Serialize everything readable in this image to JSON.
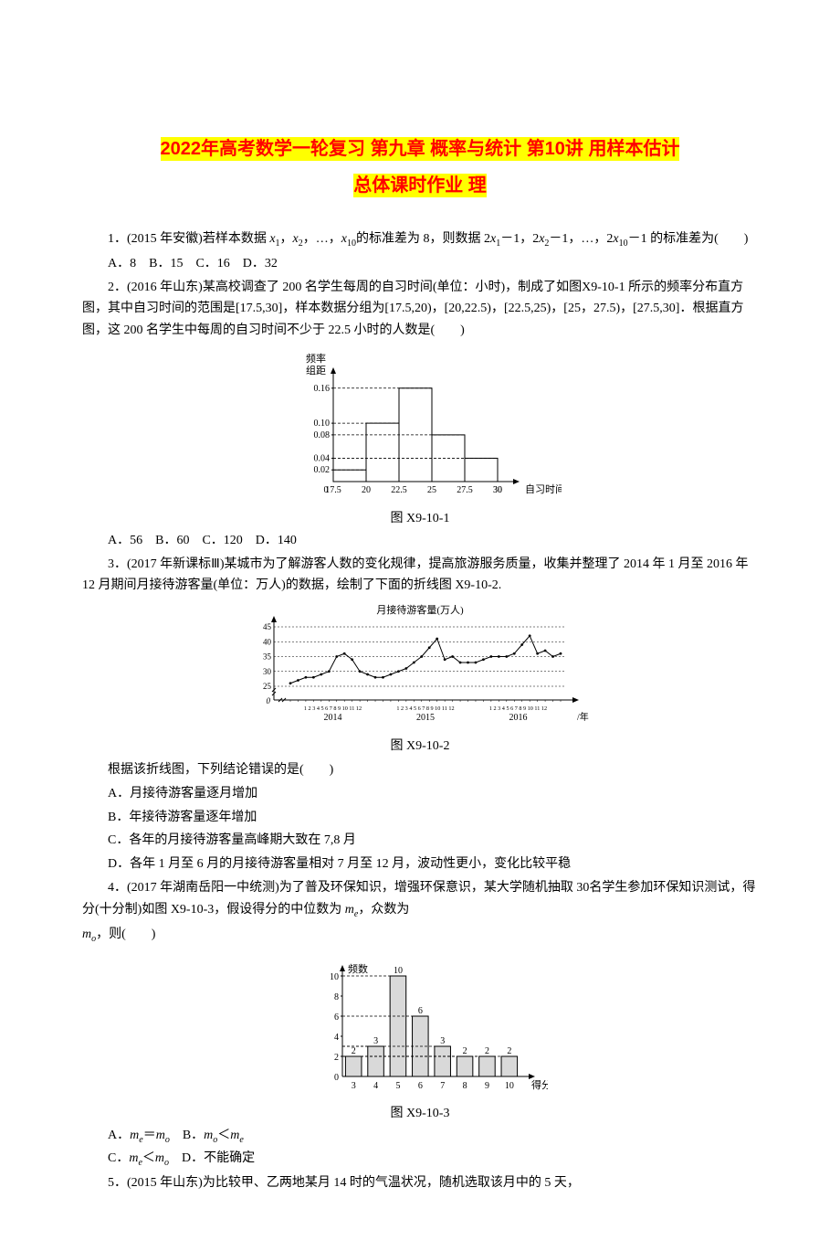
{
  "title": {
    "line1": "2022年高考数学一轮复习 第九章 概率与统计 第10讲 用样本估计",
    "line2": "总体课时作业 理"
  },
  "q1": {
    "stem_a": "1．(2015 年安徽)若样本数据 ",
    "stem_b": "的标准差为 8，则数据 2",
    "stem_c": "－1，2",
    "stem_d": "－1，…，2",
    "stem_e": "－1 的标准差为(　　)",
    "opts": "A．8　B．15　C．16　D．32"
  },
  "q2": {
    "stem_a": "2．(2016 年山东)某高校调查了 200 名学生每周的自习时间(单位：小时)，制成了如图X9-10-1 所示的频率分布直方图，其中自习时间的范围是[17.5,30]，样本数据分组为[17.5,20)，[20,22.5)，[22.5,25)，[25，27.5)，[27.5,30]．根据直方图，这 200 名学生中每周的自习时间不少于 22.5 小时的人数是(　　)",
    "ylabel1": "频率",
    "ylabel2": "组距",
    "yt": [
      "0.02",
      "0.04",
      "0.08",
      "0.10",
      "0.16"
    ],
    "xt": [
      "0",
      "17.5",
      "20",
      "22.5",
      "25",
      "27.5",
      "30"
    ],
    "xlabel": "自习时间/时",
    "figlabel": "图 X9-10-1",
    "opts": "A．56　B．60　C．120　D．140",
    "bars": [
      0.02,
      0.1,
      0.16,
      0.08,
      0.04
    ],
    "ymax": 0.18,
    "colors": {
      "axis": "#000",
      "dash": "#000"
    }
  },
  "q3": {
    "stem_a": "3．(2017 年新课标Ⅲ)某城市为了解游客人数的变化规律，提高旅游服务质量，收集并整理了 2014 年 1 月至 2016 年 12 月期间月接待游客量(单位：万人)的数据，绘制了下面的折线图 X9-10-2.",
    "title": "月接待游客量(万人)",
    "yt": [
      "0",
      "25",
      "30",
      "35",
      "40",
      "45"
    ],
    "years": [
      "2014",
      "2015",
      "2016"
    ],
    "xlabel_end": "/年",
    "months": "1 2 3 4 5 6 7 8 9 10 11 12",
    "figlabel": "图 X9-10-2",
    "follow": "根据该折线图，下列结论错误的是(　　)",
    "A": "A．月接待游客量逐月增加",
    "B": "B．年接待游客量逐年增加",
    "C": "C．各年的月接待游客量高峰期大致在 7,8 月",
    "D": "D．各年 1 月至 6 月的月接待游客量相对 7 月至 12 月，波动性更小，变化比较平稳",
    "data": [
      26,
      27,
      28,
      28,
      29,
      30,
      35,
      36,
      34,
      30,
      29,
      28,
      28,
      29,
      30,
      31,
      33,
      35,
      38,
      41,
      34,
      35,
      33,
      33,
      33,
      34,
      35,
      35,
      35,
      36,
      39,
      42,
      36,
      37,
      35,
      36
    ]
  },
  "q4": {
    "stem_a": "4．(2017 年湖南岳阳一中统测)为了普及环保知识，增强环保意识，某大学随机抽取 30名学生参加环保知识测试，得分(十分制)如图 X9-10-3，假设得分的中位数为 ",
    "stem_b": "，众数为",
    "stem_c": "，则(　　)",
    "ylabel": "频数",
    "xt": [
      "3",
      "4",
      "5",
      "6",
      "7",
      "8",
      "9",
      "10"
    ],
    "xlabel": "得分",
    "yt": [
      "0",
      "2",
      "4",
      "6",
      "8",
      "10"
    ],
    "bars": [
      2,
      3,
      10,
      6,
      3,
      2,
      2,
      2
    ],
    "figlabel": "图 X9-10-3",
    "optA": "A．",
    "optA2": "＝",
    "optB": "　B．",
    "optB2": "＜",
    "optC": "C．",
    "optC2": "＜",
    "optD": "　D．不能确定"
  },
  "q5": {
    "stem": "5．(2015 年山东)为比较甲、乙两地某月 14 时的气温状况，随机选取该月中的 5 天，"
  }
}
